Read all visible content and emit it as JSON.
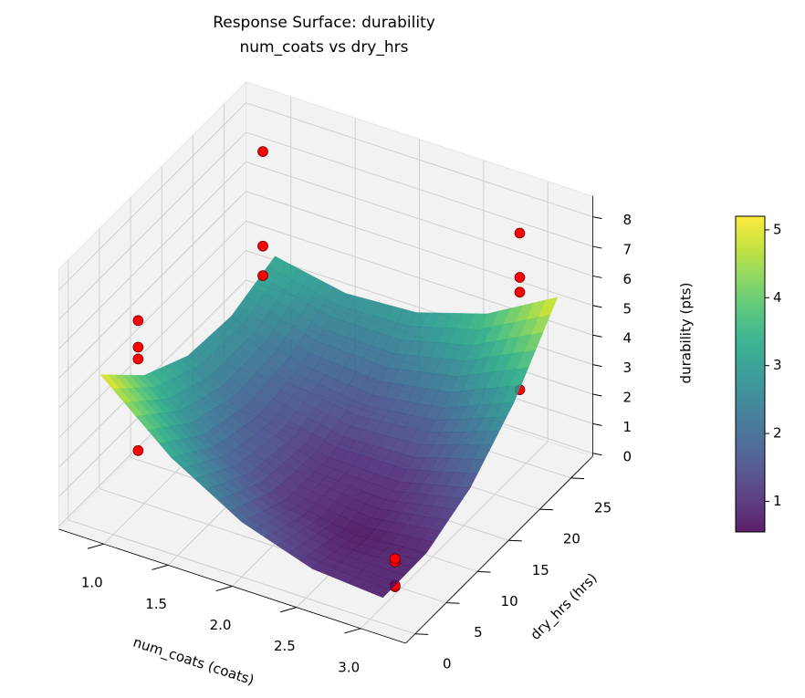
{
  "chart_data": {
    "type": "surface3d",
    "title": "Response Surface: durability",
    "subtitle": "num_coats vs dry_hrs",
    "xlabel": "num_coats (coats)",
    "ylabel": "dry_hrs (hrs)",
    "zlabel": "durability (pts)",
    "xlim": [
      0.65,
      3.35
    ],
    "ylim": [
      -1.5,
      28.5
    ],
    "zlim": [
      -0.1,
      8.7
    ],
    "xticks": [
      {
        "value": 1,
        "label": "1.0"
      },
      1.5,
      {
        "value": 2,
        "label": "2.0"
      },
      2.5,
      {
        "value": 3,
        "label": "3.0"
      }
    ],
    "yticks": [
      0,
      5,
      10,
      15,
      20,
      25
    ],
    "zticks": [
      0,
      1,
      2,
      3,
      4,
      5,
      6,
      7,
      8
    ],
    "colormap": "viridis",
    "surface": {
      "x": [
        0.9,
        1.45,
        2.0,
        2.55,
        3.1
      ],
      "y": [
        0,
        7,
        14,
        21,
        28
      ],
      "z": [
        [
          5.17,
          3.67,
          2.85,
          2.72,
          3.27
        ],
        [
          3.16,
          2.04,
          1.61,
          1.86,
          2.8
        ],
        [
          1.76,
          1.03,
          0.98,
          1.62,
          2.94
        ],
        [
          0.96,
          0.61,
          0.95,
          1.97,
          3.68
        ],
        [
          0.77,
          0.81,
          1.53,
          2.94,
          5.03
        ]
      ]
    },
    "series": [
      {
        "color": "#ff0000",
        "x": [
          1,
          1,
          1,
          1,
          1,
          1,
          1,
          3,
          3,
          3,
          3,
          3,
          3,
          3,
          3
        ],
        "y": [
          4,
          4,
          4,
          4,
          24,
          24,
          24,
          24,
          24,
          24,
          24,
          4,
          4,
          4,
          4
        ],
        "z": [
          6.3,
          5.4,
          5.0,
          1.9,
          7.8,
          4.6,
          3.6,
          7.9,
          6.4,
          5.9,
          2.6,
          1.1,
          1.0,
          0.2,
          0.15
        ]
      }
    ],
    "colorbar": {
      "clim": [
        0.55,
        5.2
      ],
      "ticks": [
        1,
        2,
        3,
        4,
        5
      ]
    }
  }
}
